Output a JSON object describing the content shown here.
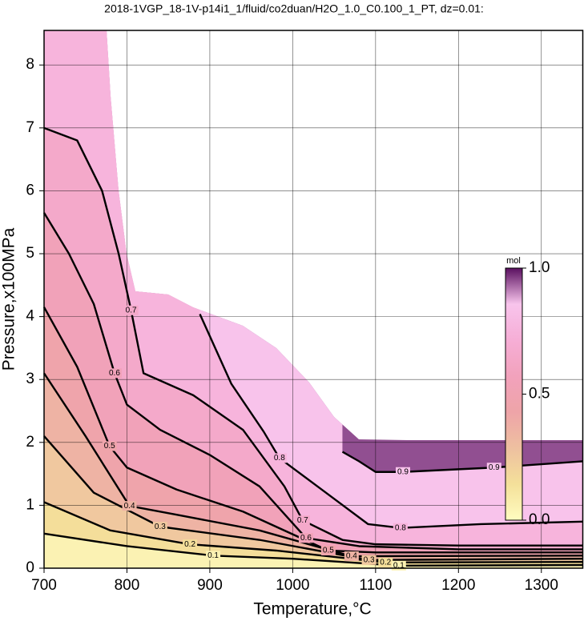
{
  "chart_data": {
    "type": "contour",
    "title": "2018-1VGP_18-1V-p14i1_1/fluid/co2duan/H2O_1.0_C0.100_1_PT, dz=0.01:",
    "x_label": "Temperature,°C",
    "y_label": "Pressure,x100MPa",
    "xlim": [
      700,
      1350
    ],
    "ylim": [
      0,
      8.55
    ],
    "xticks": [
      700,
      800,
      900,
      1000,
      1100,
      1200,
      1300
    ],
    "yticks": [
      0,
      1,
      2,
      3,
      4,
      5,
      6,
      7,
      8
    ],
    "grid": true,
    "colorbar_label": "mol",
    "zlim": [
      0,
      1
    ],
    "zticks": [
      {
        "value": 0,
        "label": "0.0"
      },
      {
        "value": 0.5,
        "label": "0.5"
      },
      {
        "value": 1,
        "label": "1.0"
      }
    ],
    "colormap": [
      "#fffcc0",
      "#f4e09a",
      "#eec0a0",
      "#eea4a8",
      "#f2a2bc",
      "#f6aed6",
      "#f8c4ec",
      "#5a1060"
    ],
    "line_color": "#000000",
    "contours": [
      {
        "level": 0.9,
        "label": "0.9",
        "x": [
          1060,
          1080,
          1100,
          1133,
          1243,
          1350
        ],
        "y": [
          1.85,
          1.7,
          1.53,
          1.53,
          1.6,
          1.7
        ]
      },
      {
        "level": 0.8,
        "label": "0.8",
        "x": [
          888,
          926,
          965,
          984,
          1033,
          1091,
          1130,
          1227,
          1350
        ],
        "y": [
          4.04,
          2.93,
          2.17,
          1.75,
          1.27,
          0.7,
          0.64,
          0.7,
          0.74
        ]
      },
      {
        "level": 0.7,
        "label": "0.7",
        "x": [
          700,
          740,
          770,
          790,
          805,
          820,
          880,
          940,
          990,
          1012,
          1060,
          1100,
          1200,
          1350
        ],
        "y": [
          7.0,
          6.8,
          6.0,
          5.0,
          4.1,
          3.1,
          2.75,
          2.2,
          1.3,
          0.76,
          0.45,
          0.38,
          0.36,
          0.36
        ]
      },
      {
        "level": 0.6,
        "label": "0.6",
        "x": [
          700,
          730,
          760,
          785,
          800,
          840,
          900,
          960,
          1016,
          1080,
          1200,
          1350
        ],
        "y": [
          5.65,
          5.0,
          4.2,
          3.1,
          2.6,
          2.2,
          1.8,
          1.3,
          0.48,
          0.35,
          0.3,
          0.3
        ]
      },
      {
        "level": 0.5,
        "label": "0.5",
        "x": [
          700,
          740,
          779,
          800,
          860,
          940,
          1043,
          1100,
          1350
        ],
        "y": [
          4.15,
          3.2,
          1.94,
          1.6,
          1.25,
          0.9,
          0.28,
          0.25,
          0.25
        ]
      },
      {
        "level": 0.4,
        "label": "0.4",
        "x": [
          700,
          750,
          803,
          860,
          960,
          1071,
          1350
        ],
        "y": [
          3.1,
          2.1,
          0.99,
          0.85,
          0.6,
          0.19,
          0.2
        ]
      },
      {
        "level": 0.3,
        "label": "0.3",
        "x": [
          700,
          760,
          840,
          960,
          1092,
          1350
        ],
        "y": [
          2.1,
          1.2,
          0.66,
          0.45,
          0.13,
          0.15
        ]
      },
      {
        "level": 0.2,
        "label": "0.2",
        "x": [
          700,
          780,
          876,
          980,
          1112,
          1350
        ],
        "y": [
          1.05,
          0.6,
          0.38,
          0.28,
          0.09,
          0.1
        ]
      },
      {
        "level": 0.1,
        "label": "0.1",
        "x": [
          700,
          800,
          904,
          1000,
          1128,
          1350
        ],
        "y": [
          0.55,
          0.35,
          0.2,
          0.15,
          0.04,
          0.05
        ]
      }
    ]
  }
}
